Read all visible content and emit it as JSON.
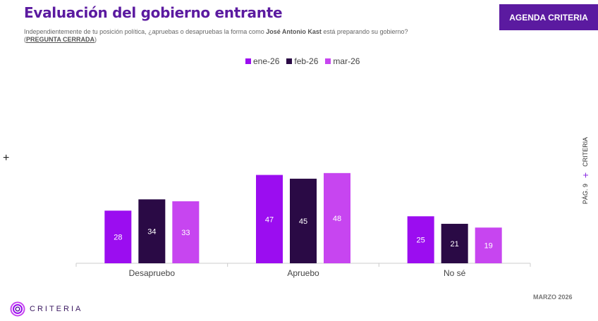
{
  "header": {
    "title": "Evaluación del gobierno entrante",
    "subtitle_pre": "Independientemente de tu posición política, ¿apruebas o desapruebas la forma como ",
    "subtitle_bold": "José Antonio Kast",
    "subtitle_post": " está preparando su gobierno? (",
    "subtitle_tag": "PREGUNTA CERRADA",
    "subtitle_end": ")",
    "button": "AGENDA CRITERIA"
  },
  "side": {
    "page": "PÁG. 9",
    "plus": "+",
    "brand": "CRITERIA"
  },
  "left_plus": "+",
  "footer": {
    "date": "MARZO 2026",
    "logo": "CRITERIA"
  },
  "chart_data": {
    "type": "bar",
    "categories": [
      "Desapruebo",
      "Apruebo",
      "No sé"
    ],
    "series": [
      {
        "name": "ene-26",
        "color": "#9b0df0",
        "values": [
          28,
          47,
          25
        ]
      },
      {
        "name": "feb-26",
        "color": "#2a0a45",
        "values": [
          34,
          45,
          21
        ]
      },
      {
        "name": "mar-26",
        "color": "#c745f0",
        "values": [
          33,
          48,
          19
        ]
      }
    ],
    "legend": "top",
    "grid": false,
    "ylim": [
      0,
      100
    ]
  }
}
